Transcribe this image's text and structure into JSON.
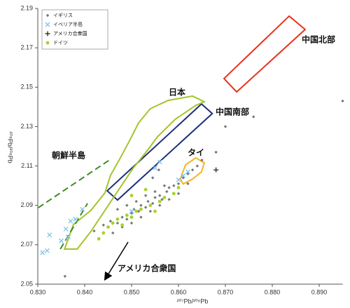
{
  "chart_data": {
    "type": "scatter",
    "x_label": "²⁰⁷Pb/²⁰⁶Pb",
    "y_label": "²⁰⁸Pb/²⁰⁶Pb",
    "xlim": [
      0.83,
      0.895
    ],
    "ylim": [
      2.05,
      2.19
    ],
    "xticks": [
      {
        "value": 0.83,
        "label": "0.830"
      },
      {
        "value": 0.84,
        "label": "0.840"
      },
      {
        "value": 0.85,
        "label": "0.850"
      },
      {
        "value": 0.86,
        "label": "0.860"
      },
      {
        "value": 0.87,
        "label": "0.870"
      },
      {
        "value": 0.88,
        "label": "0.880"
      },
      {
        "value": 0.89,
        "label": "0.890"
      }
    ],
    "yticks": [
      2.05,
      2.07,
      2.09,
      2.11,
      2.13,
      2.15,
      2.17,
      2.19
    ],
    "grid": false,
    "legend": "upper left",
    "series": [
      {
        "name": "イギリス",
        "marker": "diamond",
        "color": "#777777",
        "x": [
          0.842,
          0.844,
          0.8455,
          0.847,
          0.848,
          0.849,
          0.85,
          0.8505,
          0.8515,
          0.852,
          0.853,
          0.8535,
          0.8545,
          0.855,
          0.856,
          0.8565,
          0.8575,
          0.858,
          0.859,
          0.86,
          0.861,
          0.862,
          0.863,
          0.864,
          0.865,
          0.846,
          0.848,
          0.85,
          0.852,
          0.854,
          0.856,
          0.858,
          0.86,
          0.847,
          0.849,
          0.851,
          0.853,
          0.855,
          0.857,
          0.862,
          0.8545,
          0.8558,
          0.876,
          0.87,
          0.895,
          0.8358,
          0.868
        ],
        "y": [
          2.077,
          2.08,
          2.082,
          2.081,
          2.084,
          2.083,
          2.086,
          2.088,
          2.087,
          2.09,
          2.089,
          2.092,
          2.091,
          2.094,
          2.095,
          2.093,
          2.097,
          2.099,
          2.1,
          2.101,
          2.104,
          2.106,
          2.108,
          2.11,
          2.113,
          2.076,
          2.079,
          2.081,
          2.084,
          2.087,
          2.09,
          2.093,
          2.096,
          2.088,
          2.09,
          2.092,
          2.095,
          2.097,
          2.1,
          2.101,
          2.104,
          2.108,
          2.135,
          2.13,
          2.143,
          2.054,
          2.117
        ]
      },
      {
        "name": "イベリア半島",
        "marker": "x",
        "color": "#7ec3ea",
        "x": [
          0.831,
          0.832,
          0.8325,
          0.835,
          0.836,
          0.837,
          0.838,
          0.8395,
          0.8365,
          0.86,
          0.861,
          0.862,
          0.856,
          0.855,
          0.85
        ],
        "y": [
          2.066,
          2.067,
          2.075,
          2.072,
          2.078,
          2.082,
          2.083,
          2.088,
          2.074,
          2.103,
          2.105,
          2.107,
          2.112,
          2.109,
          2.087
        ]
      },
      {
        "name": "アメリカ合衆国",
        "marker": "plus",
        "color": "#3b3320",
        "x": [
          0.868
        ],
        "y": [
          2.108
        ]
      },
      {
        "name": "ドイツ",
        "marker": "circle",
        "color": "#a6d22c",
        "x": [
          0.843,
          0.844,
          0.846,
          0.847,
          0.849,
          0.85,
          0.851,
          0.852,
          0.854,
          0.856,
          0.857,
          0.859,
          0.86,
          0.85,
          0.853,
          0.848,
          0.845,
          0.855
        ],
        "y": [
          2.073,
          2.076,
          2.081,
          2.083,
          2.085,
          2.084,
          2.087,
          2.088,
          2.09,
          2.092,
          2.094,
          2.096,
          2.099,
          2.095,
          2.098,
          2.08,
          2.079,
          2.087
        ]
      }
    ],
    "regions": [
      {
        "name": "中国北部",
        "color": "#e8321e",
        "closed": true,
        "dashed": false,
        "x": [
          0.8697,
          0.8836,
          0.887,
          0.8724
        ],
        "y": [
          2.1544,
          2.1861,
          2.1793,
          2.1476
        ]
      },
      {
        "name": "中国南部",
        "color": "#1c2f7a",
        "closed": true,
        "dashed": false,
        "x": [
          0.8448,
          0.8649,
          0.8672,
          0.847
        ],
        "y": [
          2.0974,
          2.1415,
          2.1366,
          2.0927
        ]
      },
      {
        "name": "日本",
        "color": "#a3c52a",
        "closed": true,
        "dashed": false,
        "x": [
          0.8357,
          0.8376,
          0.8413,
          0.8443,
          0.8455,
          0.8476,
          0.8496,
          0.8515,
          0.854,
          0.8578,
          0.863,
          0.8655,
          0.8637,
          0.8593,
          0.8555,
          0.8533,
          0.8503,
          0.8473,
          0.8443,
          0.8413,
          0.8384
        ],
        "y": [
          2.0678,
          2.0803,
          2.0874,
          2.0963,
          2.1052,
          2.1141,
          2.123,
          2.1319,
          2.1391,
          2.1433,
          2.1455,
          2.1426,
          2.1408,
          2.1337,
          2.1248,
          2.1177,
          2.1088,
          2.0981,
          2.0874,
          2.0767,
          2.0678
        ]
      },
      {
        "name": "タイ",
        "color": "#f5b422",
        "closed": true,
        "dashed": false,
        "x": [
          0.8604,
          0.8615,
          0.8637,
          0.8655,
          0.8649,
          0.863,
          0.861
        ],
        "y": [
          2.1034,
          2.1106,
          2.1141,
          2.1116,
          2.107,
          2.1034,
          2.1009
        ]
      },
      {
        "name": "朝鮮半島",
        "color": "#3e8c23",
        "closed": false,
        "dashed": true,
        "x": [
          0.8301,
          0.8455,
          null,
          0.8348,
          0.8406
        ],
        "y": [
          2.0888,
          2.1134,
          null,
          2.0678,
          2.091
        ]
      }
    ],
    "annotation": "アメリカ合衆国"
  }
}
